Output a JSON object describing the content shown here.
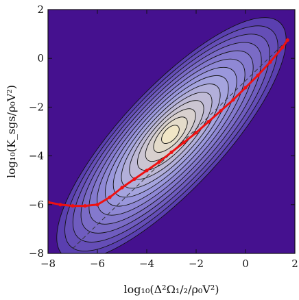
{
  "chart_data": {
    "type": "heatmap",
    "title": "",
    "xlabel": "log₁₀(Δ²Ω₁/₂/ρ₀V²)",
    "ylabel": "log₁₀(K_sgs/ρ₀V²)",
    "xlim": [
      -8,
      2
    ],
    "ylim": [
      -8,
      2
    ],
    "xticks": [
      -8,
      -6,
      -4,
      -2,
      0,
      2
    ],
    "yticks": [
      -8,
      -6,
      -4,
      -2,
      0,
      2
    ],
    "grid": false,
    "colors": {
      "background": "#45118f",
      "contour_outer": "#5a3fb0",
      "contour_mid": "#9f9ee0",
      "contour_inner": "#f1e6c6",
      "contour_line": "#111111",
      "red_curve": "#ee1111",
      "dashed_line": "#333333"
    },
    "contour_center": {
      "x": -3.0,
      "y": -3.3
    },
    "red_curve": {
      "name": "",
      "x": [
        -8.0,
        -7.5,
        -7.0,
        -6.5,
        -6.0,
        -5.5,
        -5.0,
        -4.5,
        -4.0,
        -3.5,
        -3.0,
        -2.5,
        -2.0,
        -1.5,
        -1.0,
        -0.5,
        0.0,
        0.5,
        1.0,
        1.5,
        1.7
      ],
      "y": [
        -5.9,
        -6.0,
        -6.05,
        -6.05,
        -6.0,
        -5.7,
        -5.3,
        -4.95,
        -4.6,
        -4.25,
        -3.85,
        -3.45,
        -3.05,
        -2.6,
        -2.15,
        -1.7,
        -1.2,
        -0.7,
        -0.15,
        0.45,
        0.75
      ]
    },
    "dashed_line": {
      "x": [
        -7.0,
        1.7
      ],
      "y": [
        -7.8,
        0.75
      ]
    }
  }
}
